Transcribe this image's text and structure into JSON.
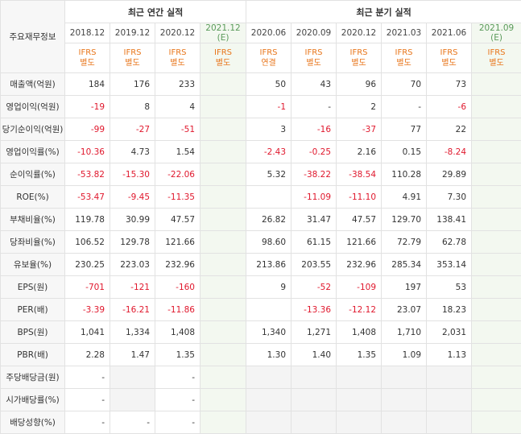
{
  "header": {
    "label": "주요재무정보",
    "annual_title": "최근 연간 실적",
    "quarter_title": "최근 분기 실적",
    "annual_periods": [
      {
        "period": "2018.12",
        "std1": "IFRS",
        "std2": "별도",
        "est": false
      },
      {
        "period": "2019.12",
        "std1": "IFRS",
        "std2": "별도",
        "est": false
      },
      {
        "period": "2020.12",
        "std1": "IFRS",
        "std2": "별도",
        "est": false
      },
      {
        "period": "2021.12 (E)",
        "std1": "IFRS",
        "std2": "별도",
        "est": true
      }
    ],
    "quarter_periods": [
      {
        "period": "2020.06",
        "std1": "IFRS",
        "std2": "연결",
        "est": false
      },
      {
        "period": "2020.09",
        "std1": "IFRS",
        "std2": "별도",
        "est": false
      },
      {
        "period": "2020.12",
        "std1": "IFRS",
        "std2": "별도",
        "est": false
      },
      {
        "period": "2021.03",
        "std1": "IFRS",
        "std2": "별도",
        "est": false
      },
      {
        "period": "2021.06",
        "std1": "IFRS",
        "std2": "별도",
        "est": false
      },
      {
        "period": "2021.09 (E)",
        "std1": "IFRS",
        "std2": "별도",
        "est": true
      }
    ]
  },
  "rows": [
    {
      "label": "매출액(억원)",
      "values": [
        "184",
        "176",
        "233",
        "",
        "50",
        "43",
        "96",
        "70",
        "73",
        ""
      ]
    },
    {
      "label": "영업이익(억원)",
      "values": [
        "-19",
        "8",
        "4",
        "",
        "-1",
        "-",
        "2",
        "-",
        "-6",
        ""
      ]
    },
    {
      "label": "당기순이익(억원)",
      "values": [
        "-99",
        "-27",
        "-51",
        "",
        "3",
        "-16",
        "-37",
        "77",
        "22",
        ""
      ]
    },
    {
      "label": "영업이익률(%)",
      "values": [
        "-10.36",
        "4.73",
        "1.54",
        "",
        "-2.43",
        "-0.25",
        "2.16",
        "0.15",
        "-8.24",
        ""
      ]
    },
    {
      "label": "순이익률(%)",
      "values": [
        "-53.82",
        "-15.30",
        "-22.06",
        "",
        "5.32",
        "-38.22",
        "-38.54",
        "110.28",
        "29.89",
        ""
      ]
    },
    {
      "label": "ROE(%)",
      "values": [
        "-53.47",
        "-9.45",
        "-11.35",
        "",
        "",
        "-11.09",
        "-11.10",
        "4.91",
        "7.30",
        ""
      ]
    },
    {
      "label": "부채비율(%)",
      "values": [
        "119.78",
        "30.99",
        "47.57",
        "",
        "26.82",
        "31.47",
        "47.57",
        "129.70",
        "138.41",
        ""
      ]
    },
    {
      "label": "당좌비율(%)",
      "values": [
        "106.52",
        "129.78",
        "121.66",
        "",
        "98.60",
        "61.15",
        "121.66",
        "72.79",
        "62.78",
        ""
      ]
    },
    {
      "label": "유보율(%)",
      "values": [
        "230.25",
        "223.03",
        "232.96",
        "",
        "213.86",
        "203.55",
        "232.96",
        "285.34",
        "353.14",
        ""
      ]
    },
    {
      "label": "EPS(원)",
      "values": [
        "-701",
        "-121",
        "-160",
        "",
        "9",
        "-52",
        "-109",
        "197",
        "53",
        ""
      ]
    },
    {
      "label": "PER(배)",
      "values": [
        "-3.39",
        "-16.21",
        "-11.86",
        "",
        "",
        "-13.36",
        "-12.12",
        "23.07",
        "18.23",
        ""
      ]
    },
    {
      "label": "BPS(원)",
      "values": [
        "1,041",
        "1,334",
        "1,408",
        "",
        "1,340",
        "1,271",
        "1,408",
        "1,710",
        "2,031",
        ""
      ]
    },
    {
      "label": "PBR(배)",
      "values": [
        "2.28",
        "1.47",
        "1.35",
        "",
        "1.30",
        "1.40",
        "1.35",
        "1.09",
        "1.13",
        ""
      ]
    },
    {
      "label": "주당배당금(원)",
      "values": [
        "-",
        "",
        "-",
        "",
        "",
        "",
        "",
        "",
        "",
        ""
      ]
    },
    {
      "label": "시가배당률(%)",
      "values": [
        "-",
        "",
        "-",
        "",
        "",
        "",
        "",
        "",
        "",
        ""
      ]
    },
    {
      "label": "배당성향(%)",
      "values": [
        "-",
        "-",
        "-",
        "",
        "",
        "",
        "",
        "",
        "",
        ""
      ]
    }
  ]
}
